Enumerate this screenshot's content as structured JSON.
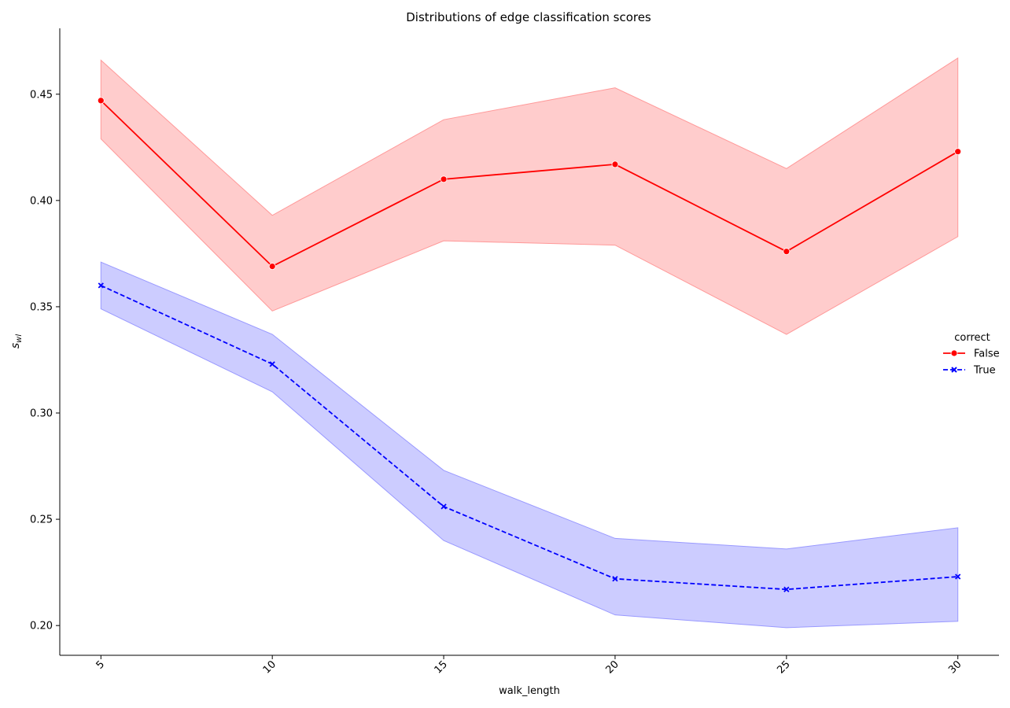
{
  "chart_data": {
    "type": "line",
    "title": "Distributions of edge classification scores",
    "xlabel": "walk_length",
    "ylabel_main": "s",
    "ylabel_sub": "wl",
    "x": [
      5,
      10,
      15,
      20,
      25,
      30
    ],
    "xticks": [
      "5",
      "10",
      "15",
      "20",
      "25",
      "30"
    ],
    "xlim": [
      3.8,
      31.2
    ],
    "ylim": [
      0.186,
      0.481
    ],
    "yticks": [
      0.2,
      0.25,
      0.3,
      0.35,
      0.4,
      0.45
    ],
    "ytick_labels": [
      "0.20",
      "0.25",
      "0.30",
      "0.35",
      "0.40",
      "0.45"
    ],
    "grid": false,
    "legend": {
      "title": "correct",
      "placement": "center-right"
    },
    "series": [
      {
        "name": "False",
        "color": "#ff0000",
        "band_color": "#ff9999",
        "line_style": "solid",
        "marker": "circle",
        "values": [
          0.447,
          0.369,
          0.41,
          0.417,
          0.376,
          0.423
        ],
        "ci_lower": [
          0.429,
          0.348,
          0.381,
          0.379,
          0.337,
          0.383
        ],
        "ci_upper": [
          0.466,
          0.393,
          0.438,
          0.453,
          0.415,
          0.467
        ]
      },
      {
        "name": "True",
        "color": "#0000ff",
        "band_color": "#9999ff",
        "line_style": "dashed",
        "marker": "x",
        "values": [
          0.36,
          0.323,
          0.256,
          0.222,
          0.217,
          0.223
        ],
        "ci_lower": [
          0.349,
          0.31,
          0.24,
          0.205,
          0.199,
          0.202
        ],
        "ci_upper": [
          0.371,
          0.337,
          0.273,
          0.241,
          0.236,
          0.246
        ]
      }
    ]
  }
}
